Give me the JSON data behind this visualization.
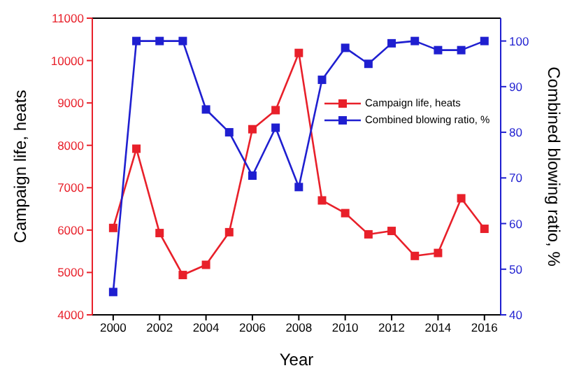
{
  "chart_data": {
    "type": "line",
    "xlabel": "Year",
    "ylabel": "Campaign life, heats",
    "y2label": "Combined blowing ratio, %",
    "x": [
      2000,
      2001,
      2002,
      2003,
      2004,
      2005,
      2006,
      2007,
      2008,
      2009,
      2010,
      2011,
      2012,
      2013,
      2014,
      2015,
      2016
    ],
    "series": [
      {
        "name": "Campaign life, heats",
        "color": "#e8202a",
        "values": [
          6050,
          7920,
          5930,
          4940,
          5180,
          5950,
          8380,
          8830,
          10180,
          6700,
          6400,
          5900,
          5980,
          5390,
          5460,
          6750,
          6030
        ]
      },
      {
        "name": "Combined blowing ratio, %",
        "color": "#1f1fd0",
        "axis": "y2",
        "values": [
          45,
          100,
          100,
          100,
          85,
          80,
          70.5,
          81,
          68,
          91.5,
          98.5,
          95,
          99.5,
          100,
          98,
          98,
          100
        ]
      }
    ],
    "xlim": [
      1999.1,
      2016.7
    ],
    "xticks": [
      2000,
      2002,
      2004,
      2006,
      2008,
      2010,
      2012,
      2014,
      2016
    ],
    "ylim": [
      4000,
      11000
    ],
    "yticks": [
      4000,
      5000,
      6000,
      7000,
      8000,
      9000,
      10000,
      11000
    ],
    "y2lim": [
      40,
      105
    ],
    "y2ticks": [
      40,
      50,
      60,
      70,
      80,
      90,
      100
    ],
    "legend": "right",
    "marker": "square",
    "line_style": "solid",
    "grid": false
  }
}
